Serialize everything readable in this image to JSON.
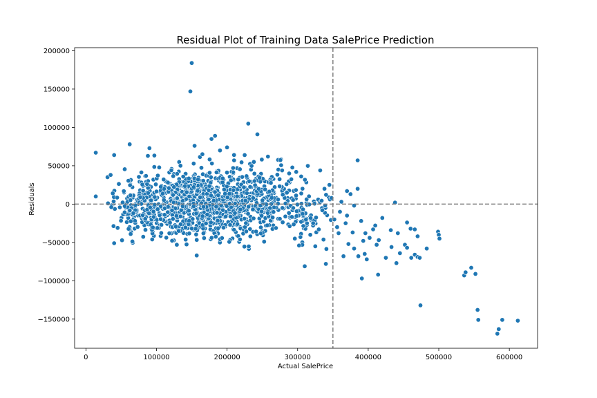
{
  "chart_data": {
    "type": "scatter",
    "title": "Residual Plot of Training Data SalePrice Prediction",
    "xlabel": "Actual SalePrice",
    "ylabel": "Residuals",
    "xlim": [
      -16000,
      640000
    ],
    "ylim": [
      -188000,
      204000
    ],
    "xticks": [
      0,
      100000,
      200000,
      300000,
      400000,
      500000,
      600000
    ],
    "yticks": [
      -150000,
      -100000,
      -50000,
      0,
      50000,
      100000,
      150000,
      200000
    ],
    "hline": 0,
    "vline": 350000,
    "grid": false,
    "marker_color": "#1f77b4",
    "reference_line_color": "#808080",
    "point_count_cluster": 1300,
    "outliers": [
      [
        150000,
        184000
      ],
      [
        148000,
        147000
      ],
      [
        230000,
        105000
      ],
      [
        243000,
        91000
      ],
      [
        183000,
        89000
      ],
      [
        178000,
        85000
      ],
      [
        200000,
        74000
      ],
      [
        154000,
        76000
      ],
      [
        62000,
        78000
      ],
      [
        90000,
        73000
      ],
      [
        14000,
        67000
      ],
      [
        40000,
        64000
      ],
      [
        157000,
        -67000
      ],
      [
        310000,
        -81000
      ],
      [
        340000,
        -78000
      ],
      [
        385000,
        57000
      ],
      [
        438000,
        2000
      ],
      [
        474000,
        -132000
      ],
      [
        391000,
        -97000
      ],
      [
        414000,
        -92000
      ],
      [
        433000,
        -56000
      ],
      [
        445000,
        -64000
      ],
      [
        452000,
        -53000
      ],
      [
        455000,
        -57000
      ],
      [
        461000,
        -70000
      ],
      [
        466000,
        -66000
      ],
      [
        470000,
        -69000
      ],
      [
        473000,
        -70000
      ],
      [
        483000,
        -58000
      ],
      [
        499000,
        -36000
      ],
      [
        500000,
        -40000
      ],
      [
        501000,
        -45000
      ],
      [
        455000,
        -24000
      ],
      [
        460000,
        -32000
      ],
      [
        466000,
        -33000
      ],
      [
        470000,
        -42000
      ],
      [
        536000,
        -93000
      ],
      [
        538000,
        -89000
      ],
      [
        546000,
        -83000
      ],
      [
        552000,
        -91000
      ],
      [
        555000,
        -138000
      ],
      [
        556000,
        -151000
      ],
      [
        583000,
        -169000
      ],
      [
        585000,
        -163000
      ],
      [
        590000,
        -151000
      ],
      [
        612000,
        -152000
      ],
      [
        14000,
        10000
      ],
      [
        36000,
        -4000
      ],
      [
        40000,
        -51000
      ],
      [
        45000,
        -31000
      ],
      [
        35000,
        38000
      ],
      [
        38000,
        14000
      ],
      [
        385000,
        20000
      ],
      [
        375000,
        13000
      ],
      [
        370000,
        17000
      ],
      [
        362000,
        3000
      ],
      [
        380000,
        -2000
      ],
      [
        370000,
        -15000
      ],
      [
        368000,
        -25000
      ],
      [
        378000,
        -37000
      ],
      [
        390000,
        -22000
      ],
      [
        396000,
        -38000
      ],
      [
        402000,
        -44000
      ],
      [
        407000,
        -33000
      ],
      [
        410000,
        -28000
      ],
      [
        412000,
        -53000
      ],
      [
        415000,
        -47000
      ],
      [
        420000,
        -18000
      ],
      [
        425000,
        -70000
      ],
      [
        432000,
        -34000
      ],
      [
        440000,
        -77000
      ],
      [
        442000,
        -38000
      ],
      [
        395000,
        -65000
      ],
      [
        398000,
        -72000
      ],
      [
        393000,
        -48000
      ],
      [
        386000,
        -68000
      ],
      [
        380000,
        -58000
      ],
      [
        372000,
        -52000
      ],
      [
        365000,
        -68000
      ],
      [
        358000,
        -38000
      ],
      [
        352000,
        -20000
      ],
      [
        356000,
        -30000
      ],
      [
        360000,
        -10000
      ],
      [
        348000,
        8000
      ],
      [
        345000,
        25000
      ],
      [
        338000,
        20000
      ],
      [
        332000,
        44000
      ],
      [
        335000,
        -8000
      ],
      [
        330000,
        -33000
      ],
      [
        325000,
        -55000
      ],
      [
        318000,
        -40000
      ],
      [
        322000,
        -25000
      ],
      [
        302000,
        -54000
      ],
      [
        296000,
        -45000
      ],
      [
        305000,
        36000
      ],
      [
        298000,
        42000
      ],
      [
        288000,
        40000
      ],
      [
        278000,
        44000
      ],
      [
        258000,
        62000
      ],
      [
        238000,
        55000
      ],
      [
        225000,
        64000
      ],
      [
        210000,
        57000
      ],
      [
        190000,
        70000
      ],
      [
        165000,
        65000
      ]
    ]
  }
}
